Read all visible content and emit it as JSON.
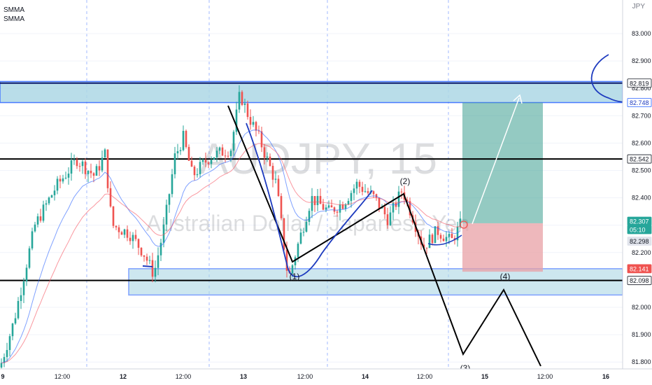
{
  "legend": {
    "indicator_1": "SMMA",
    "indicator_2": "SMMA"
  },
  "currency_label": "JPY",
  "watermark": {
    "symbol": "AUDJPY, 15",
    "name": "Australian Dollar / Japanese Yen"
  },
  "colors": {
    "up_candle": "#26a69a",
    "down_candle": "#ef5350",
    "zone_fill": "#add8e6",
    "zone_border": "#2962ff",
    "resistance_line": "#0d1b6b",
    "support_line": "#000000",
    "drawn_line": "#000000",
    "smma_1": "#2962ff",
    "smma_2": "#f7525f",
    "target_fill": "#3c9f8f",
    "stop_fill": "#e8a0a5",
    "price_badge_current": "#26a69a",
    "price_badge_support": "#ef5350"
  },
  "chart_data": {
    "type": "candlestick",
    "symbol": "AUDJPY",
    "timeframe": "15",
    "y_axis": {
      "ylim": [
        81.75,
        83.1
      ],
      "ticks": [
        "83.000",
        "82.900",
        "82.800",
        "82.700",
        "82.600",
        "82.500",
        "82.400",
        "82.300",
        "82.200",
        "82.100",
        "82.000",
        "81.900",
        "81.800"
      ]
    },
    "x_axis": {
      "ticks": [
        "9",
        "12:00",
        "12",
        "12:00",
        "13",
        "12:00",
        "14",
        "12:00",
        "15",
        "12:00",
        "16"
      ]
    },
    "price_labels": [
      {
        "text": "82.819",
        "kind": "line"
      },
      {
        "text": "82.748",
        "kind": "line"
      },
      {
        "text": "82.542",
        "kind": "line"
      },
      {
        "text": "82.307",
        "kind": "current"
      },
      {
        "text": "05:10",
        "kind": "countdown"
      },
      {
        "text": "82.298",
        "kind": "plain"
      },
      {
        "text": "82.141",
        "kind": "red"
      },
      {
        "text": "82.098",
        "kind": "line"
      }
    ],
    "horizontal_lines": [
      82.819,
      82.542,
      82.098
    ],
    "zones": [
      {
        "name": "resistance-zone",
        "from": 82.748,
        "to": 82.825
      },
      {
        "name": "support-zone",
        "from": 82.045,
        "to": 82.141
      }
    ],
    "wave_labels": [
      "(1)",
      "(2)",
      "(3)",
      "(4)",
      "(2)"
    ],
    "long_position": {
      "entry": 82.307,
      "target": 82.748,
      "stop": 82.13
    },
    "last_price": 82.307,
    "countdown": "05:10"
  }
}
